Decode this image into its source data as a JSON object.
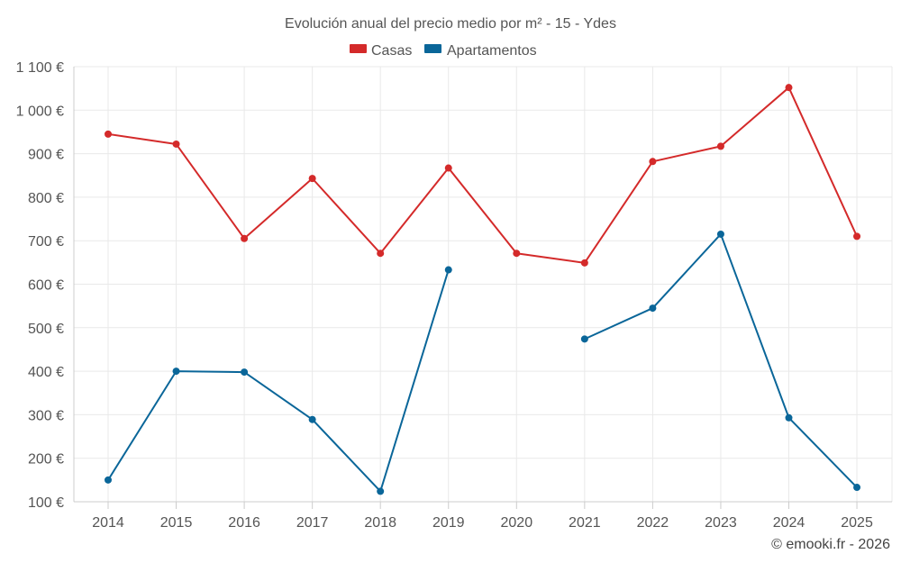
{
  "chart_data": {
    "type": "line",
    "title": "Evolución anual del precio medio por m² - 15 - Ydes",
    "categories": [
      "2014",
      "2015",
      "2016",
      "2017",
      "2018",
      "2019",
      "2020",
      "2021",
      "2022",
      "2023",
      "2024",
      "2025"
    ],
    "series": [
      {
        "name": "Casas",
        "color": "#d42a2a",
        "values": [
          945,
          922,
          705,
          843,
          671,
          867,
          671,
          649,
          882,
          917,
          1052,
          710
        ]
      },
      {
        "name": "Apartamentos",
        "color": "#0a6699",
        "values": [
          150,
          400,
          398,
          289,
          124,
          633,
          null,
          474,
          545,
          715,
          293,
          133
        ]
      }
    ],
    "ylim": [
      100,
      1100
    ],
    "yticks": [
      100,
      200,
      300,
      400,
      500,
      600,
      700,
      800,
      900,
      1000,
      1100
    ],
    "ytick_labels": [
      "100 €",
      "200 €",
      "300 €",
      "400 €",
      "500 €",
      "600 €",
      "700 €",
      "800 €",
      "900 €",
      "1 000 €",
      "1 100 €"
    ],
    "legend_position": "top-center",
    "grid": true
  },
  "credit": "© emooki.fr - 2026"
}
